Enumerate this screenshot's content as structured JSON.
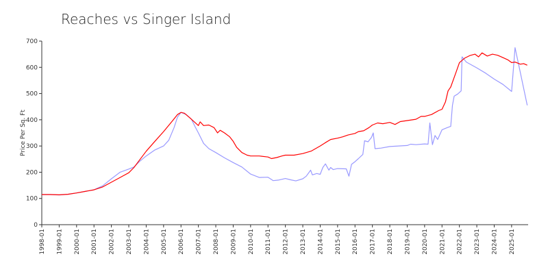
{
  "chart_data": {
    "type": "line",
    "title": "Reaches vs Singer Island",
    "xlabel": "",
    "ylabel": "Price Per Sq. Ft",
    "ylim": [
      0,
      700
    ],
    "yticks": [
      0,
      100,
      200,
      300,
      400,
      500,
      600,
      700
    ],
    "xlim": [
      1998.0,
      2025.95
    ],
    "xtick_labels": [
      "1998-01",
      "1999-01",
      "2000-01",
      "2001-01",
      "2002-01",
      "2003-01",
      "2004-01",
      "2005-01",
      "2006-01",
      "2007-01",
      "2008-01",
      "2009-01",
      "2010-01",
      "2011-01",
      "2012-01",
      "2013-01",
      "2014-01",
      "2015-01",
      "2016-01",
      "2017-01",
      "2018-01",
      "2019-01",
      "2020-01",
      "2021-01",
      "2022-01",
      "2023-01",
      "2024-01",
      "2025-01"
    ],
    "grid": false,
    "legend": "none",
    "series": [
      {
        "color": "#ff0000",
        "points": [
          [
            1998.0,
            115
          ],
          [
            1998.5,
            115
          ],
          [
            1999.0,
            114
          ],
          [
            1999.5,
            116
          ],
          [
            2000.0,
            121
          ],
          [
            2000.5,
            127
          ],
          [
            2001.0,
            133
          ],
          [
            2001.5,
            144
          ],
          [
            2002.0,
            162
          ],
          [
            2002.5,
            180
          ],
          [
            2003.0,
            198
          ],
          [
            2003.3,
            218
          ],
          [
            2003.6,
            245
          ],
          [
            2004.0,
            280
          ],
          [
            2004.5,
            318
          ],
          [
            2005.0,
            355
          ],
          [
            2005.5,
            395
          ],
          [
            2005.8,
            420
          ],
          [
            2006.0,
            428
          ],
          [
            2006.2,
            425
          ],
          [
            2006.5,
            408
          ],
          [
            2006.8,
            390
          ],
          [
            2007.0,
            378
          ],
          [
            2007.1,
            392
          ],
          [
            2007.3,
            378
          ],
          [
            2007.6,
            380
          ],
          [
            2007.9,
            370
          ],
          [
            2008.1,
            350
          ],
          [
            2008.25,
            360
          ],
          [
            2008.5,
            350
          ],
          [
            2008.8,
            335
          ],
          [
            2009.0,
            318
          ],
          [
            2009.2,
            295
          ],
          [
            2009.5,
            275
          ],
          [
            2009.8,
            265
          ],
          [
            2010.0,
            262
          ],
          [
            2010.5,
            262
          ],
          [
            2011.0,
            258
          ],
          [
            2011.2,
            252
          ],
          [
            2011.5,
            256
          ],
          [
            2011.8,
            262
          ],
          [
            2012.0,
            265
          ],
          [
            2012.5,
            265
          ],
          [
            2013.0,
            271
          ],
          [
            2013.5,
            281
          ],
          [
            2014.0,
            300
          ],
          [
            2014.3,
            313
          ],
          [
            2014.6,
            325
          ],
          [
            2015.0,
            330
          ],
          [
            2015.3,
            335
          ],
          [
            2015.6,
            342
          ],
          [
            2016.0,
            348
          ],
          [
            2016.2,
            355
          ],
          [
            2016.5,
            358
          ],
          [
            2016.8,
            370
          ],
          [
            2017.0,
            380
          ],
          [
            2017.3,
            388
          ],
          [
            2017.6,
            385
          ],
          [
            2018.0,
            390
          ],
          [
            2018.3,
            382
          ],
          [
            2018.6,
            393
          ],
          [
            2019.0,
            397
          ],
          [
            2019.5,
            402
          ],
          [
            2019.8,
            413
          ],
          [
            2020.0,
            413
          ],
          [
            2020.4,
            420
          ],
          [
            2020.8,
            435
          ],
          [
            2021.0,
            440
          ],
          [
            2021.2,
            468
          ],
          [
            2021.35,
            510
          ],
          [
            2021.5,
            525
          ],
          [
            2021.8,
            580
          ],
          [
            2022.0,
            618
          ],
          [
            2022.3,
            635
          ],
          [
            2022.6,
            645
          ],
          [
            2022.9,
            650
          ],
          [
            2023.1,
            640
          ],
          [
            2023.3,
            655
          ],
          [
            2023.6,
            643
          ],
          [
            2023.9,
            650
          ],
          [
            2024.2,
            646
          ],
          [
            2024.5,
            637
          ],
          [
            2024.8,
            628
          ],
          [
            2025.0,
            618
          ],
          [
            2025.2,
            620
          ],
          [
            2025.5,
            612
          ],
          [
            2025.7,
            614
          ],
          [
            2025.9,
            608
          ]
        ]
      },
      {
        "color": "#9999ff",
        "points": [
          [
            1998.0,
            115
          ],
          [
            1998.5,
            115
          ],
          [
            1999.0,
            113
          ],
          [
            1999.5,
            116
          ],
          [
            2000.0,
            121
          ],
          [
            2000.5,
            127
          ],
          [
            2001.0,
            133
          ],
          [
            2001.5,
            148
          ],
          [
            2002.0,
            175
          ],
          [
            2002.5,
            200
          ],
          [
            2003.0,
            212
          ],
          [
            2003.3,
            220
          ],
          [
            2003.6,
            240
          ],
          [
            2004.0,
            262
          ],
          [
            2004.5,
            285
          ],
          [
            2005.0,
            300
          ],
          [
            2005.3,
            322
          ],
          [
            2005.6,
            370
          ],
          [
            2005.8,
            410
          ],
          [
            2006.0,
            428
          ],
          [
            2006.3,
            420
          ],
          [
            2006.6,
            402
          ],
          [
            2006.8,
            375
          ],
          [
            2007.0,
            350
          ],
          [
            2007.3,
            310
          ],
          [
            2007.6,
            290
          ],
          [
            2008.0,
            275
          ],
          [
            2008.5,
            255
          ],
          [
            2009.0,
            237
          ],
          [
            2009.5,
            220
          ],
          [
            2010.0,
            193
          ],
          [
            2010.5,
            180
          ],
          [
            2011.0,
            181
          ],
          [
            2011.3,
            168
          ],
          [
            2011.6,
            170
          ],
          [
            2012.0,
            176
          ],
          [
            2012.3,
            171
          ],
          [
            2012.6,
            167
          ],
          [
            2013.0,
            175
          ],
          [
            2013.2,
            185
          ],
          [
            2013.45,
            208
          ],
          [
            2013.55,
            190
          ],
          [
            2013.8,
            195
          ],
          [
            2014.0,
            192
          ],
          [
            2014.15,
            218
          ],
          [
            2014.3,
            232
          ],
          [
            2014.5,
            208
          ],
          [
            2014.6,
            218
          ],
          [
            2014.75,
            210
          ],
          [
            2015.0,
            214
          ],
          [
            2015.5,
            213
          ],
          [
            2015.65,
            185
          ],
          [
            2015.8,
            230
          ],
          [
            2016.0,
            240
          ],
          [
            2016.2,
            252
          ],
          [
            2016.45,
            268
          ],
          [
            2016.55,
            320
          ],
          [
            2016.75,
            316
          ],
          [
            2016.95,
            333
          ],
          [
            2017.05,
            350
          ],
          [
            2017.15,
            290
          ],
          [
            2017.5,
            292
          ],
          [
            2018.0,
            298
          ],
          [
            2018.5,
            300
          ],
          [
            2019.0,
            302
          ],
          [
            2019.2,
            307
          ],
          [
            2019.5,
            305
          ],
          [
            2020.0,
            308
          ],
          [
            2020.2,
            307
          ],
          [
            2020.3,
            388
          ],
          [
            2020.45,
            305
          ],
          [
            2020.6,
            340
          ],
          [
            2020.75,
            325
          ],
          [
            2021.0,
            362
          ],
          [
            2021.3,
            370
          ],
          [
            2021.5,
            375
          ],
          [
            2021.6,
            455
          ],
          [
            2021.7,
            490
          ],
          [
            2021.9,
            498
          ],
          [
            2022.1,
            510
          ],
          [
            2022.15,
            640
          ],
          [
            2022.4,
            620
          ],
          [
            2023.0,
            598
          ],
          [
            2023.5,
            578
          ],
          [
            2024.0,
            555
          ],
          [
            2024.5,
            535
          ],
          [
            2025.0,
            508
          ],
          [
            2025.2,
            675
          ],
          [
            2025.5,
            580
          ],
          [
            2025.9,
            455
          ]
        ]
      }
    ]
  }
}
